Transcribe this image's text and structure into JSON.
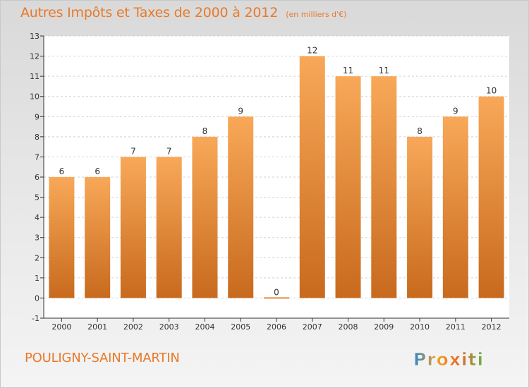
{
  "title": "Autres Impôts et Taxes de 2000 à 2012",
  "unit": "(en milliers d'€)",
  "place": "POULIGNY-SAINT-MARTIN",
  "logo_text": "Proxiti",
  "colors": {
    "title": "#e87a2b",
    "bar_top": "#f8a858",
    "bar_bottom": "#c86a1e",
    "axis": "#333333",
    "grid": "#d2d2d2"
  },
  "chart_data": {
    "type": "bar",
    "title": "Autres Impôts et Taxes de 2000 à 2012",
    "subtitle": "(en milliers d'€)",
    "categories": [
      "2000",
      "2001",
      "2002",
      "2003",
      "2004",
      "2005",
      "2006",
      "2007",
      "2008",
      "2009",
      "2010",
      "2011",
      "2012"
    ],
    "values": [
      6,
      6,
      7,
      7,
      8,
      9,
      0,
      12,
      11,
      11,
      8,
      9,
      10
    ],
    "data_labels": [
      "6",
      "6",
      "7",
      "7",
      "8",
      "9",
      "0",
      "12",
      "11",
      "11",
      "8",
      "9",
      "10"
    ],
    "y_ticks": [
      "-1",
      "0",
      "1",
      "2",
      "3",
      "4",
      "5",
      "6",
      "7",
      "8",
      "9",
      "10",
      "11",
      "12",
      "13"
    ],
    "ylim": [
      -1,
      13
    ],
    "xlabel": "",
    "ylabel": "",
    "grid": true,
    "legend": "none"
  }
}
